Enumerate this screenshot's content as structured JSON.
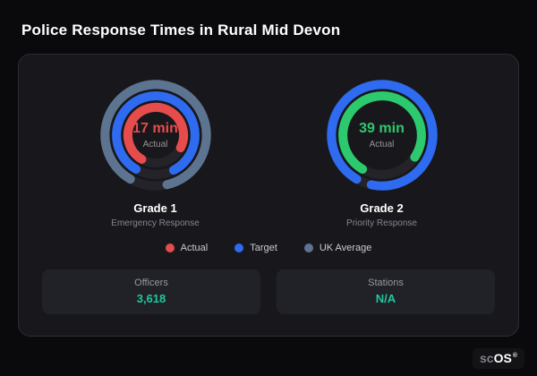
{
  "page": {
    "title": "Police Response Times in Rural Mid Devon"
  },
  "brand": {
    "prefix": "sc",
    "suffix": "OS",
    "reg": "®"
  },
  "chart_data": {
    "type": "gauge",
    "gauges": [
      {
        "title": "Grade 1",
        "subtitle": "Emergency Response",
        "value": "17 min",
        "metric": "Actual",
        "value_color": "#e64c4c",
        "rings": [
          {
            "name": "uk-average",
            "color": "#5d7491",
            "frac": 0.88
          },
          {
            "name": "target",
            "color": "#2e6bf0",
            "frac": 0.84
          },
          {
            "name": "actual",
            "color": "#e64c4c",
            "frac": 0.74
          }
        ]
      },
      {
        "title": "Grade 2",
        "subtitle": "Priority Response",
        "value": "39 min",
        "metric": "Actual",
        "value_color": "#2dc96e",
        "rings": [
          {
            "name": "target",
            "color": "#2e6bf0",
            "frac": 0.95
          },
          {
            "name": "actual",
            "color": "#2dc96e",
            "frac": 0.76
          }
        ]
      }
    ],
    "legend": [
      {
        "label": "Actual",
        "color": "#e64c4c"
      },
      {
        "label": "Target",
        "color": "#2e6bf0"
      },
      {
        "label": "UK Average",
        "color": "#5d7491"
      }
    ]
  },
  "stats": [
    {
      "label": "Officers",
      "value": "3,618"
    },
    {
      "label": "Stations",
      "value": "N/A"
    }
  ],
  "colors": {
    "stat_value": "#1fc79c",
    "track": "#232329"
  }
}
